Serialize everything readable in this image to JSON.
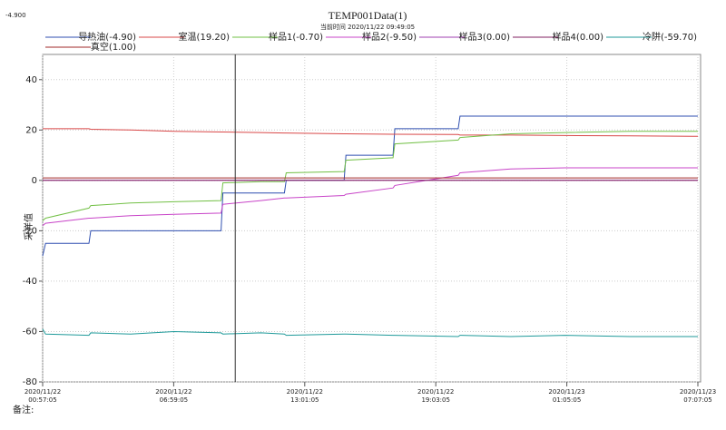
{
  "chart_data": {
    "type": "line",
    "title": "TEMP001Data(1)",
    "subtitle": "当前时间 2020/11/22  09:49:05",
    "cursor": {
      "x": "2020/11/22 09:49:05",
      "label": "-4.900"
    },
    "y_label": "采样值",
    "note": "备注:",
    "x": [
      "2020/11/22 00:57:05",
      "2020/11/22 01:05:00",
      "2020/11/22 03:05:00",
      "2020/11/22 03:10:00",
      "2020/11/22 05:00:00",
      "2020/11/22 07:00:00",
      "2020/11/22 09:10:00",
      "2020/11/22 09:15:00",
      "2020/11/22 11:00:00",
      "2020/11/22 12:05:00",
      "2020/11/22 12:10:00",
      "2020/11/22 14:50:00",
      "2020/11/22 14:55:00",
      "2020/11/22 17:05:00",
      "2020/11/22 17:10:00",
      "2020/11/22 20:05:00",
      "2020/11/22 20:10:00",
      "2020/11/22 22:30:00",
      "2020/11/23 01:00:00",
      "2020/11/23 04:00:00",
      "2020/11/23 07:07:05"
    ],
    "xlim": [
      "2020/11/22 00:57:05",
      "2020/11/23 07:07:05"
    ],
    "xticks": [
      "2020/11/22 00:57:05",
      "2020/11/22 06:59:05",
      "2020/11/22 13:01:05",
      "2020/11/22 19:03:05",
      "2020/11/23 01:05:05",
      "2020/11/23 07:07:05"
    ],
    "ylim": [
      -80,
      50
    ],
    "yticks": [
      -80,
      -60,
      -40,
      -20,
      0,
      20,
      40
    ],
    "grid": true,
    "series": [
      {
        "name": "导热油(-4.90)",
        "color": "#2f4fb0",
        "values": [
          -30,
          -25,
          -25,
          -20,
          -20,
          -20,
          -20,
          -5,
          -5,
          -5,
          0,
          0,
          10,
          10,
          20.5,
          20.5,
          25.5,
          25.5,
          25.5,
          25.5,
          25.5
        ]
      },
      {
        "name": "室温(19.20)",
        "color": "#d94848",
        "values": [
          20.5,
          20.5,
          20.5,
          20.3,
          20,
          19.5,
          19.2,
          19.2,
          19,
          18.8,
          18.8,
          18.5,
          18.5,
          18.3,
          18.3,
          18.2,
          18,
          18,
          17.8,
          17.7,
          17.5
        ]
      },
      {
        "name": "样品1(-0.70)",
        "color": "#72c045",
        "values": [
          -16,
          -15,
          -11,
          -10,
          -9,
          -8.5,
          -8,
          -1,
          -0.5,
          -0.5,
          3,
          3.5,
          8,
          9,
          14.5,
          16,
          17,
          18.5,
          19,
          19.5,
          19.5
        ]
      },
      {
        "name": "样品2(-9.50)",
        "color": "#c844c8",
        "values": [
          -18,
          -17,
          -15,
          -15,
          -14,
          -13.5,
          -13,
          -9.5,
          -8,
          -7,
          -7,
          -6,
          -5.5,
          -3,
          -2,
          2,
          3,
          4.5,
          5,
          5,
          5
        ]
      },
      {
        "name": "样品3(0.00)",
        "color": "#a040b0",
        "values": [
          0,
          0,
          0,
          0,
          0,
          0,
          0,
          0,
          0,
          0,
          0,
          0,
          0,
          0,
          0,
          0,
          0,
          0,
          0,
          0,
          0
        ]
      },
      {
        "name": "样品4(0.00)",
        "color": "#802060",
        "values": [
          0,
          0,
          0,
          0,
          0,
          0,
          0,
          0,
          0,
          0,
          0,
          0,
          0,
          0,
          0,
          0,
          0,
          0,
          0,
          0,
          0
        ]
      },
      {
        "name": "冷阱(-59.70)",
        "color": "#1f9a9a",
        "values": [
          -59,
          -61,
          -61.5,
          -60.5,
          -61,
          -60,
          -60.5,
          -61,
          -60.5,
          -61,
          -61.5,
          -61,
          -61,
          -61.5,
          -61.5,
          -62,
          -61.5,
          -62,
          -61.5,
          -62,
          -62
        ]
      },
      {
        "name": "真空(1.00)",
        "color": "#a02828",
        "values": [
          1,
          1,
          1,
          1,
          1,
          1,
          1,
          1,
          1,
          1,
          1,
          1,
          1,
          1,
          1,
          1,
          1,
          1,
          1,
          1,
          1
        ]
      }
    ]
  }
}
